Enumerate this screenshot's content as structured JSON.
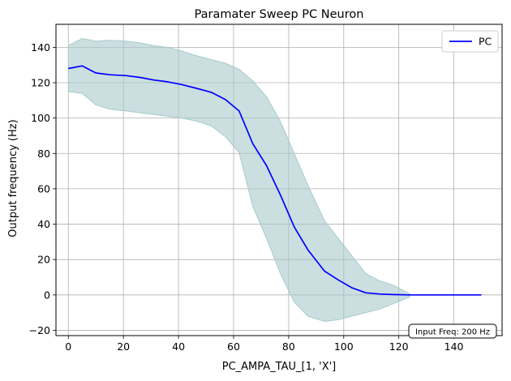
{
  "chart_data": {
    "type": "line",
    "title": "Paramater Sweep PC Neuron",
    "xlabel": "PC_AMPA_TAU_[1, 'X']",
    "ylabel": "Output frequency (Hz)",
    "xlim": [
      -4.5,
      157.5
    ],
    "ylim": [
      -23,
      153
    ],
    "xticks": [
      0,
      20,
      40,
      60,
      80,
      100,
      120,
      140
    ],
    "yticks": [
      -20,
      0,
      20,
      40,
      60,
      80,
      100,
      120,
      140
    ],
    "grid": true,
    "legend_position": "top-right",
    "annotation": "Input Freq: 200 Hz",
    "series": [
      {
        "name": "PC",
        "color": "#0000ff",
        "x": [
          0,
          5,
          10,
          15,
          21,
          26,
          31,
          36,
          41,
          46,
          52,
          57,
          62,
          67,
          72,
          77,
          82,
          87,
          93,
          98,
          103,
          108,
          113,
          118,
          124,
          129,
          134,
          139,
          144,
          150
        ],
        "y": [
          128,
          129.5,
          125.5,
          124.5,
          124,
          123,
          121.5,
          120.5,
          119,
          117,
          114.5,
          110.5,
          104,
          85.5,
          73,
          56.5,
          38.5,
          25.5,
          13.5,
          8.5,
          4,
          1.2,
          0.5,
          0.2,
          0,
          0,
          0,
          0,
          0,
          0
        ]
      }
    ],
    "band": {
      "color": "#a8cacc",
      "x": [
        0,
        5,
        10,
        15,
        21,
        26,
        31,
        36,
        41,
        46,
        52,
        57,
        62,
        67,
        72,
        77,
        82,
        87,
        93,
        98,
        103,
        108,
        113,
        118,
        124
      ],
      "upper": [
        141,
        145,
        143.5,
        144,
        143.5,
        142.5,
        141,
        140,
        138,
        135.5,
        133,
        131,
        127.5,
        121,
        112,
        98,
        80,
        62,
        42,
        32,
        22,
        12,
        8,
        5.5,
        0.5
      ],
      "lower": [
        115,
        114,
        107.5,
        105,
        104,
        103,
        102,
        101,
        100,
        98.5,
        95.5,
        89.5,
        80.5,
        50,
        32,
        12,
        -4,
        -12,
        -15,
        -14,
        -12,
        -10,
        -8,
        -5,
        -1
      ]
    }
  }
}
